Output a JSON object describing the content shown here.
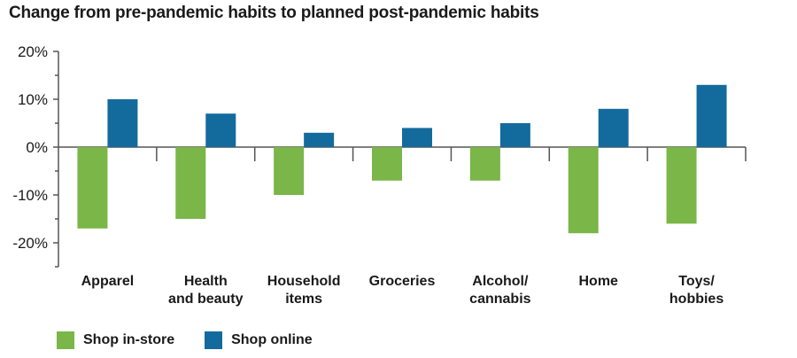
{
  "title": "Change from pre-pandemic habits to planned post-pandemic habits",
  "colors": {
    "in_store": "#7ab648",
    "online": "#136b9d",
    "axis": "#555555"
  },
  "chart_data": {
    "type": "bar",
    "title": "Change from pre-pandemic habits to planned post-pandemic habits",
    "categories": [
      [
        "Apparel"
      ],
      [
        "Health",
        "and beauty"
      ],
      [
        "Household",
        "items"
      ],
      [
        "Groceries"
      ],
      [
        "Alcohol/",
        "cannabis"
      ],
      [
        "Home"
      ],
      [
        "Toys/",
        "hobbies"
      ]
    ],
    "series": [
      {
        "name": "Shop in-store",
        "color": "#7ab648",
        "values": [
          -17,
          -15,
          -10,
          -7,
          -7,
          -18,
          -16
        ]
      },
      {
        "name": "Shop online",
        "color": "#136b9d",
        "values": [
          10,
          7,
          3,
          4,
          5,
          8,
          13
        ]
      }
    ],
    "yticks": [
      20,
      10,
      0,
      -10,
      -20
    ],
    "ytick_labels": [
      "20%",
      "10%",
      "0%",
      "-10%",
      "-20%"
    ],
    "ylim": [
      -25,
      20
    ],
    "grid": false,
    "legend_position": "bottom-left"
  }
}
